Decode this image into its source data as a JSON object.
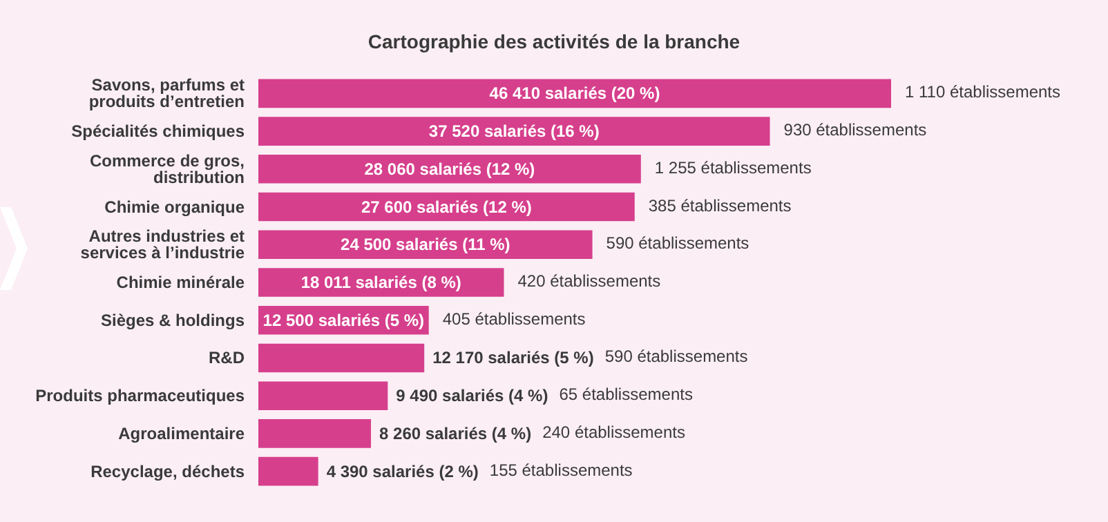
{
  "chart_data": {
    "type": "bar",
    "orientation": "horizontal",
    "title": "Cartographie des activités de la branche",
    "categories": [
      "Savons, parfums et produits d’entretien",
      "Spécialités chimiques",
      "Commerce de gros, distribution",
      "Chimie organique",
      "Autres industries et services à l’industrie",
      "Chimie minérale",
      "Sièges & holdings",
      "R&D",
      "Produits pharmaceutiques",
      "Agroalimentaire",
      "Recyclage, déchets"
    ],
    "values": [
      46410,
      37520,
      28060,
      27600,
      24500,
      18011,
      12500,
      12170,
      9490,
      8260,
      4390
    ],
    "color": "#d63f8c",
    "value_labels": [
      "46 410 salariés (20 %)",
      "37 520 salariés (16 %)",
      "28 060 salariés (12 %)",
      "27 600 salariés (12 %)",
      "24 500 salariés (11 %)",
      "18 011 salariés (8 %)",
      "12 500 salariés (5 %)",
      "12 170 salariés (5 %)",
      "9 490 salariés (4 %)",
      "8 260 salariés (4 %)",
      "4 390 salariés (2 %)"
    ],
    "annotations": [
      "1 110 établissements",
      "930 établissements",
      "1 255 établissements",
      "385 établissements",
      "590 établissements",
      "420 établissements",
      "405 établissements",
      "590 établissements",
      "65 établissements",
      "240 établissements",
      "155 établissements"
    ]
  }
}
